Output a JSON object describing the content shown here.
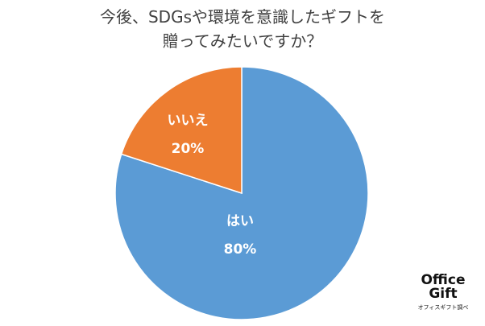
{
  "chart_data": {
    "type": "pie",
    "title": "今後、SDGsや環境を意識したギフトを\n贈ってみたいですか？",
    "categories": [
      "はい",
      "いいえ"
    ],
    "values": [
      80,
      20
    ],
    "value_labels": [
      "80%",
      "20%"
    ],
    "colors": [
      "#5b9bd5",
      "#ed7d31"
    ],
    "logo": [
      "Office",
      "Gift"
    ],
    "source": "オフィスギフト調べ"
  }
}
